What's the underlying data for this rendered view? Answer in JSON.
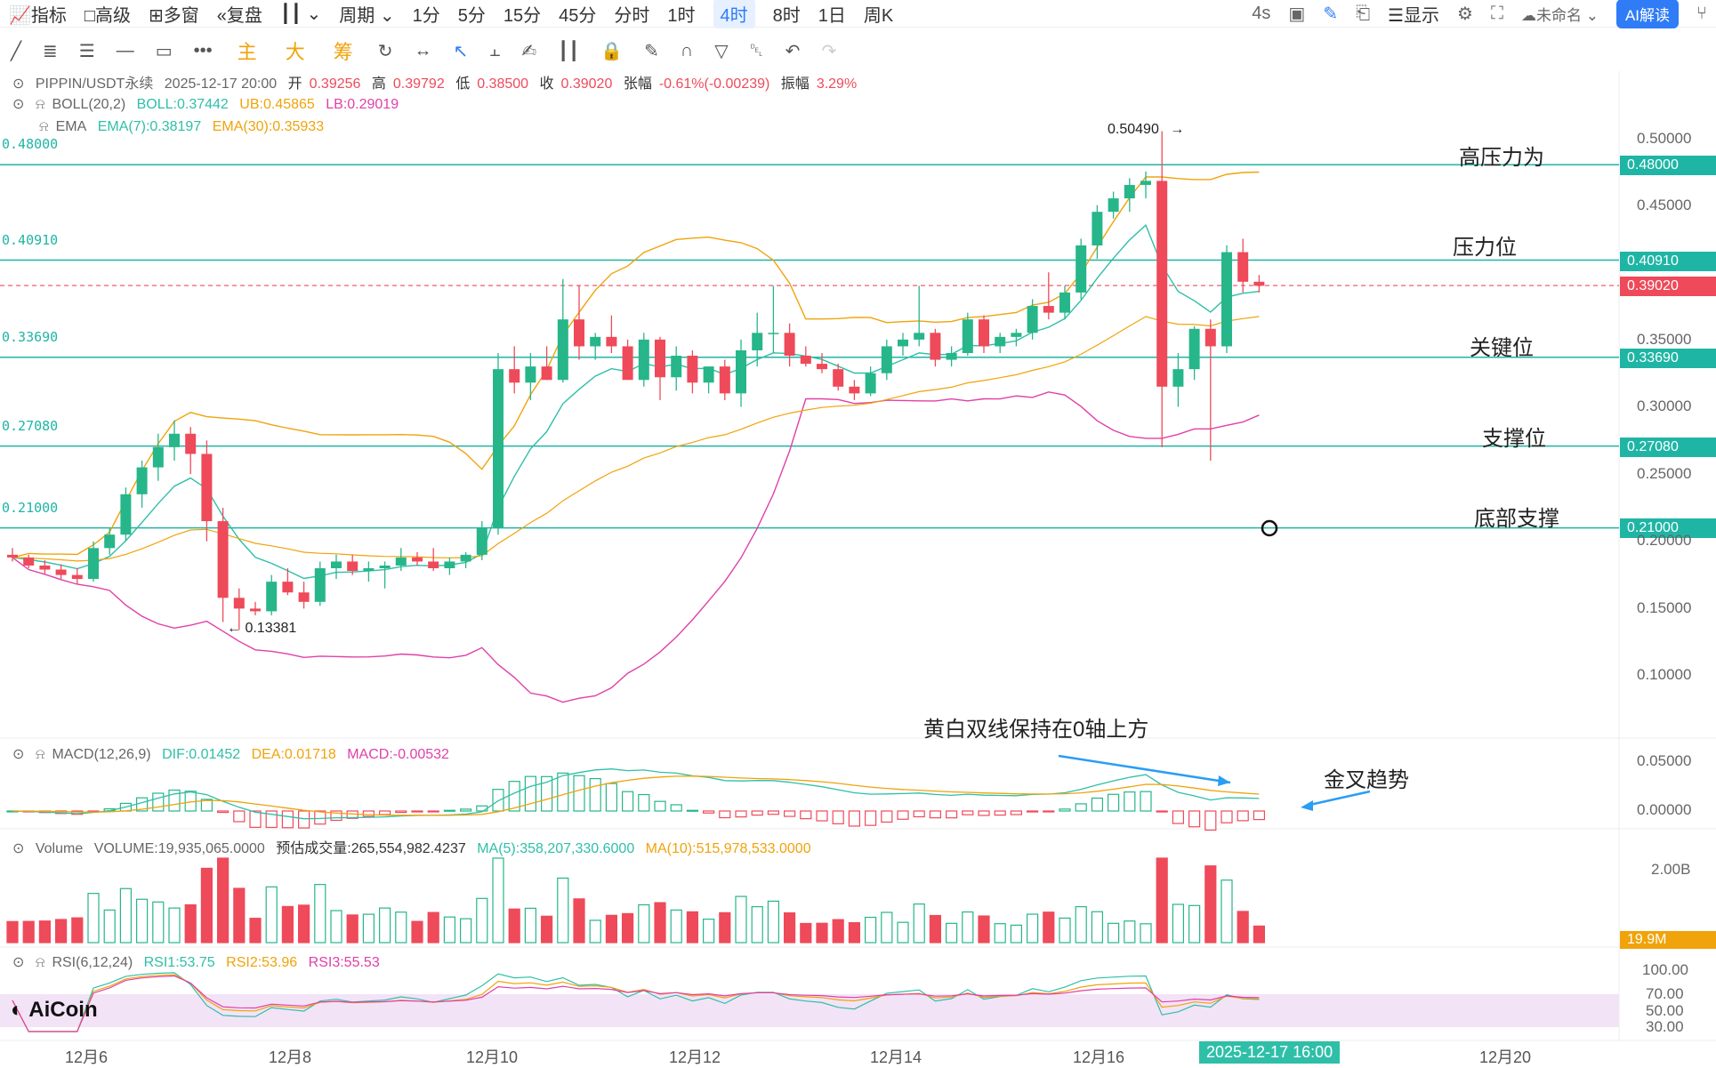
{
  "toolbar": {
    "left_items": [
      "指标",
      "高级",
      "多窗",
      "复盘"
    ],
    "period_label": "周期",
    "periods": [
      "1分",
      "5分",
      "15分",
      "45分",
      "分时",
      "1时",
      "4时",
      "8时",
      "1日",
      "周K"
    ],
    "active_period": "4时",
    "right_items": [
      "4s",
      "显示",
      "未命名"
    ],
    "ai_button": "AI解读",
    "chip_labels": [
      "主",
      "大",
      "筹"
    ]
  },
  "header": {
    "symbol": "PIPPIN/USDT永续",
    "datetime": "2025-12-17 20:00",
    "open_label": "开",
    "open": "0.39256",
    "high_label": "高",
    "high": "0.39792",
    "low_label": "低",
    "low": "0.38500",
    "close_label": "收",
    "close": "0.39020",
    "change_label": "张幅",
    "change": "-0.61%(-0.00239)",
    "amp_label": "振幅",
    "amp": "3.29%"
  },
  "boll": {
    "name": "BOLL(20,2)",
    "mid": "BOLL:0.37442",
    "ub": "UB:0.45865",
    "lb": "LB:0.29019"
  },
  "ema": {
    "name": "EMA",
    "ema7": "EMA(7):0.38197",
    "ema30": "EMA(30):0.35933"
  },
  "macd_legend": {
    "name": "MACD(12,26,9)",
    "dif": "DIF:0.01452",
    "dea": "DEA:0.01718",
    "macd": "MACD:-0.00532"
  },
  "volume_legend": {
    "name": "Volume",
    "vol": "VOLUME:19,935,065.0000",
    "est": "预估成交量:265,554,982.4237",
    "ma5": "MA(5):358,207,330.6000",
    "ma10": "MA(10):515,978,533.0000"
  },
  "rsi_legend": {
    "name": "RSI(6,12,24)",
    "rsi1": "RSI1:53.75",
    "rsi2": "RSI2:53.96",
    "rsi3": "RSI3:55.53"
  },
  "levels": {
    "left": [
      "0.48000",
      "0.40910",
      "0.33690",
      "0.27080",
      "0.21000"
    ],
    "right": [
      "0.48000",
      "0.40910",
      "0.39020",
      "0.33690",
      "0.27080",
      "0.21000"
    ]
  },
  "annotations": {
    "high_pressure": "高压力为",
    "pressure": "压力位",
    "key": "关键位",
    "support": "支撑位",
    "bottom_support": "底部支撑",
    "macd_note": "黄白双线保持在0轴上方",
    "golden_cross": "金叉趋势",
    "high_marker": "0.50490",
    "low_marker": "0.13381"
  },
  "price_axis": [
    "0.50000",
    "0.45000",
    "0.35000",
    "0.30000",
    "0.25000",
    "0.20000",
    "0.15000",
    "0.10000"
  ],
  "macd_axis": [
    "0.05000",
    "0.00000"
  ],
  "vol_axis": [
    "2.00B"
  ],
  "vol_current": "19.9M",
  "rsi_axis": [
    "100.00",
    "70.00",
    "50.00",
    "30.00"
  ],
  "x_axis": [
    "12月6",
    "12月8",
    "12月10",
    "12月12",
    "12月14",
    "12月16",
    "12月20"
  ],
  "x_cursor": "2025-12-17 16:00",
  "watermark": "AiCoin",
  "colors": {
    "up": "#26b68a",
    "down": "#ee4a5a",
    "level": "#1fb5a5",
    "boll": "#f0a30a",
    "lb": "#e040a8",
    "mid": "#2fbfa8"
  },
  "chart_data": {
    "type": "candlestick",
    "candles": [
      [
        0.19,
        0.195,
        0.185,
        0.188
      ],
      [
        0.188,
        0.19,
        0.18,
        0.182
      ],
      [
        0.182,
        0.186,
        0.176,
        0.179
      ],
      [
        0.179,
        0.183,
        0.172,
        0.175
      ],
      [
        0.175,
        0.18,
        0.168,
        0.172
      ],
      [
        0.172,
        0.2,
        0.17,
        0.195
      ],
      [
        0.195,
        0.21,
        0.19,
        0.205
      ],
      [
        0.205,
        0.24,
        0.2,
        0.235
      ],
      [
        0.235,
        0.26,
        0.225,
        0.255
      ],
      [
        0.255,
        0.28,
        0.245,
        0.27
      ],
      [
        0.27,
        0.29,
        0.26,
        0.28
      ],
      [
        0.28,
        0.285,
        0.25,
        0.265
      ],
      [
        0.265,
        0.275,
        0.2,
        0.215
      ],
      [
        0.215,
        0.225,
        0.14,
        0.158
      ],
      [
        0.158,
        0.165,
        0.134,
        0.15
      ],
      [
        0.15,
        0.155,
        0.145,
        0.148
      ],
      [
        0.148,
        0.175,
        0.145,
        0.17
      ],
      [
        0.17,
        0.18,
        0.16,
        0.162
      ],
      [
        0.162,
        0.17,
        0.15,
        0.155
      ],
      [
        0.155,
        0.185,
        0.152,
        0.18
      ],
      [
        0.18,
        0.19,
        0.172,
        0.185
      ],
      [
        0.185,
        0.19,
        0.175,
        0.178
      ],
      [
        0.178,
        0.185,
        0.17,
        0.18
      ],
      [
        0.18,
        0.185,
        0.165,
        0.182
      ],
      [
        0.182,
        0.195,
        0.178,
        0.188
      ],
      [
        0.188,
        0.192,
        0.182,
        0.185
      ],
      [
        0.185,
        0.195,
        0.178,
        0.18
      ],
      [
        0.18,
        0.188,
        0.175,
        0.185
      ],
      [
        0.185,
        0.192,
        0.18,
        0.19
      ],
      [
        0.19,
        0.215,
        0.186,
        0.21
      ],
      [
        0.21,
        0.34,
        0.205,
        0.328
      ],
      [
        0.328,
        0.345,
        0.31,
        0.318
      ],
      [
        0.318,
        0.34,
        0.305,
        0.33
      ],
      [
        0.33,
        0.345,
        0.32,
        0.32
      ],
      [
        0.32,
        0.395,
        0.318,
        0.365
      ],
      [
        0.365,
        0.39,
        0.335,
        0.345
      ],
      [
        0.345,
        0.355,
        0.335,
        0.352
      ],
      [
        0.352,
        0.368,
        0.34,
        0.345
      ],
      [
        0.345,
        0.35,
        0.32,
        0.32
      ],
      [
        0.32,
        0.355,
        0.315,
        0.35
      ],
      [
        0.35,
        0.352,
        0.305,
        0.322
      ],
      [
        0.322,
        0.345,
        0.312,
        0.338
      ],
      [
        0.338,
        0.342,
        0.31,
        0.318
      ],
      [
        0.318,
        0.33,
        0.31,
        0.33
      ],
      [
        0.33,
        0.335,
        0.305,
        0.31
      ],
      [
        0.31,
        0.35,
        0.3,
        0.342
      ],
      [
        0.342,
        0.37,
        0.33,
        0.355
      ],
      [
        0.355,
        0.39,
        0.34,
        0.355
      ],
      [
        0.355,
        0.362,
        0.33,
        0.338
      ],
      [
        0.338,
        0.345,
        0.33,
        0.332
      ],
      [
        0.332,
        0.34,
        0.325,
        0.328
      ],
      [
        0.328,
        0.332,
        0.312,
        0.315
      ],
      [
        0.315,
        0.32,
        0.305,
        0.31
      ],
      [
        0.31,
        0.33,
        0.308,
        0.325
      ],
      [
        0.325,
        0.35,
        0.32,
        0.345
      ],
      [
        0.345,
        0.355,
        0.338,
        0.35
      ],
      [
        0.35,
        0.39,
        0.345,
        0.355
      ],
      [
        0.355,
        0.358,
        0.33,
        0.335
      ],
      [
        0.335,
        0.345,
        0.33,
        0.34
      ],
      [
        0.34,
        0.37,
        0.338,
        0.365
      ],
      [
        0.365,
        0.368,
        0.34,
        0.345
      ],
      [
        0.345,
        0.355,
        0.34,
        0.352
      ],
      [
        0.352,
        0.358,
        0.345,
        0.355
      ],
      [
        0.355,
        0.38,
        0.35,
        0.375
      ],
      [
        0.375,
        0.4,
        0.365,
        0.37
      ],
      [
        0.37,
        0.39,
        0.365,
        0.385
      ],
      [
        0.385,
        0.425,
        0.38,
        0.42
      ],
      [
        0.42,
        0.45,
        0.41,
        0.445
      ],
      [
        0.445,
        0.46,
        0.44,
        0.455
      ],
      [
        0.455,
        0.47,
        0.445,
        0.465
      ],
      [
        0.465,
        0.475,
        0.455,
        0.468
      ],
      [
        0.468,
        0.505,
        0.27,
        0.315
      ],
      [
        0.315,
        0.34,
        0.3,
        0.328
      ],
      [
        0.328,
        0.36,
        0.32,
        0.358
      ],
      [
        0.358,
        0.365,
        0.26,
        0.345
      ],
      [
        0.345,
        0.42,
        0.34,
        0.415
      ],
      [
        0.415,
        0.425,
        0.385,
        0.393
      ],
      [
        0.393,
        0.398,
        0.385,
        0.39
      ]
    ]
  }
}
